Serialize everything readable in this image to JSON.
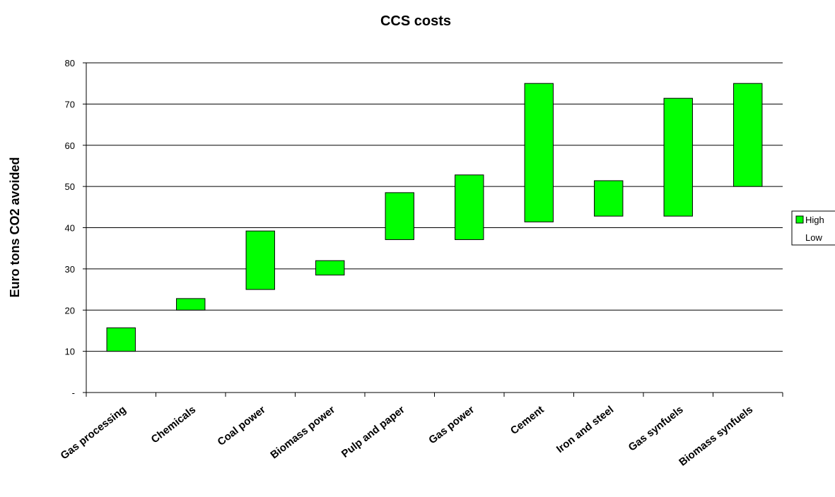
{
  "chart_data": {
    "type": "bar",
    "subtype": "floating-range",
    "title": "CCS costs",
    "xlabel": "",
    "ylabel": "Euro tons CO2 avoided",
    "ylim": [
      0,
      80
    ],
    "yticks": [
      0,
      10,
      20,
      30,
      40,
      50,
      60,
      70,
      80
    ],
    "ytick_labels": [
      "-",
      "10",
      "20",
      "30",
      "40",
      "50",
      "60",
      "70",
      "80"
    ],
    "grid": true,
    "categories": [
      "Gas processing",
      "Chemicals",
      "Coal power",
      "Biomass power",
      "Pulp and paper",
      "Gas power",
      "Cement",
      "Iron and steel",
      "Gas synfuels",
      "Biomass synfuels"
    ],
    "series": [
      {
        "name": "High",
        "values": [
          15.7,
          22.8,
          39.2,
          32.0,
          48.5,
          52.8,
          75.0,
          51.4,
          71.4,
          75.0
        ]
      },
      {
        "name": "Low",
        "values": [
          10.0,
          20.0,
          25.0,
          28.5,
          37.1,
          37.1,
          41.4,
          42.8,
          42.8,
          50.0
        ]
      }
    ],
    "legend": {
      "position": "right",
      "entries": [
        "High",
        "Low"
      ]
    },
    "colors": {
      "bar_fill": "#00ff00",
      "bar_stroke": "#000000",
      "grid": "#000000"
    }
  }
}
